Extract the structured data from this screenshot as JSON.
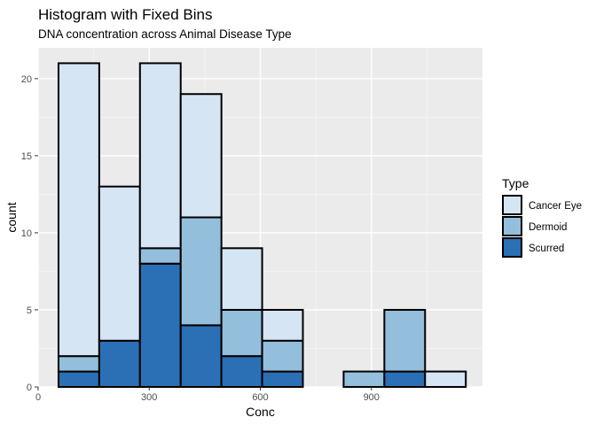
{
  "chart_data": {
    "type": "bar",
    "subtype": "stacked-histogram",
    "title": "Histogram with Fixed Bins",
    "subtitle": "DNA concentration across Animal Disease Type",
    "xlabel": "Conc",
    "ylabel": "count",
    "xlim": [
      0,
      1200
    ],
    "ylim": [
      0,
      22
    ],
    "xticks": [
      0,
      300,
      600,
      900
    ],
    "yticks": [
      0,
      5,
      10,
      15,
      20
    ],
    "bins": [
      [
        55,
        165
      ],
      [
        165,
        275
      ],
      [
        275,
        385
      ],
      [
        385,
        495
      ],
      [
        495,
        605
      ],
      [
        605,
        715
      ],
      [
        715,
        825
      ],
      [
        825,
        935
      ],
      [
        935,
        1045
      ],
      [
        1045,
        1155
      ]
    ],
    "series": [
      {
        "name": "Scurred",
        "values": [
          1,
          3,
          8,
          4,
          2,
          1,
          0,
          0,
          1,
          0
        ],
        "color": "#2b6fb5"
      },
      {
        "name": "Dermoid",
        "values": [
          1,
          0,
          1,
          7,
          3,
          2,
          0,
          1,
          4,
          0
        ],
        "color": "#93bfdc"
      },
      {
        "name": "Cancer Eye",
        "values": [
          19,
          10,
          12,
          8,
          4,
          2,
          0,
          0,
          0,
          1
        ],
        "color": "#d6e5f4"
      }
    ],
    "stack_order": "Scurred at bottom, Dermoid middle, Cancer Eye top",
    "legend": {
      "title": "Type",
      "position": "right",
      "entries": [
        "Cancer Eye",
        "Dermoid",
        "Scurred"
      ]
    },
    "grid": true,
    "panel_background": "#ebebeb",
    "bar_outline": "#000000"
  }
}
